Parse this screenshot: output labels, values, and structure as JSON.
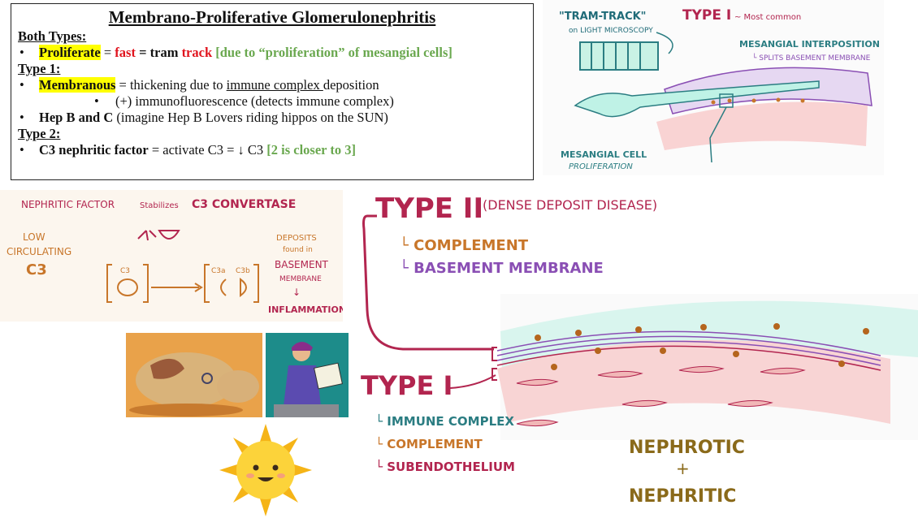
{
  "notes": {
    "title": "Membrano-Proliferative Glomerulonephritis",
    "both_types_heading": "Both Types:",
    "both_proliferate": "Proliferate",
    "both_eq1": " = ",
    "both_fast": "fast",
    "both_eq2": " = tram ",
    "both_track": "track",
    "both_reason": " [due to “proliferation” of mesangial cells]",
    "type1_heading": "Type 1:",
    "type1_membranous": "Membranous",
    "type1_thick": " = thickening due to ",
    "type1_immune": "immune complex ",
    "type1_deposition": "deposition",
    "type1_if": "(+) immunofluorescence (detects immune complex)",
    "type1_hep": "Hep B and C",
    "type1_hep_note": " (imagine Hep B Lovers riding hippos on the SUN)",
    "type2_heading": "Type 2:",
    "type2_c3nf": "C3 nephritic factor",
    "type2_activate": " = activate C3 = ↓ C3 ",
    "type2_reason": "[2 is closer to 3]"
  },
  "tram_panel": {
    "tram_track": "\"TRAM-TRACK\"",
    "light_micro": "on LIGHT MICROSCOPY",
    "type1": "TYPE I",
    "most_common": "~ Most common",
    "mesangial_interp": "MESANGIAL INTERPOSITION",
    "splits_bm": "└ SPLITS BASEMENT MEMBRANE",
    "mesangial_cell": "MESANGIAL CELL",
    "proliferation": "PROLIFERATION"
  },
  "c3_panel": {
    "nephritic_factor": "NEPHRITIC FACTOR",
    "stabilizes": "Stabilizes",
    "c3_convertase": "C3 CONVERTASE",
    "low": "LOW",
    "circulating": "CIRCULATING",
    "c3_big": "C3",
    "c3_small": "C3",
    "c3a": "C3a",
    "c3b": "C3b",
    "deposits": "DEPOSITS",
    "found_in": "found in",
    "basement": "BASEMENT",
    "membrane": "MEMBRANE",
    "arrow": "↓",
    "inflammation": "INFLAMMATION"
  },
  "types_panel": {
    "type2": "TYPE II",
    "dense_deposit": "(DENSE DEPOSIT DISEASE)",
    "t2_complement": "└ COMPLEMENT",
    "t2_bm": "└ BASEMENT MEMBRANE",
    "type1": "TYPE I",
    "t1_immune": "└ IMMUNE COMPLEX",
    "t1_complement": "└ COMPLEMENT",
    "t1_subendo": "└ SUBENDOTHELIUM",
    "nephrotic": "NEPHROTIC",
    "plus": "+",
    "nephritic": "NEPHRITIC"
  },
  "colors": {
    "crimson": "#b2254f",
    "orange": "#c8762a",
    "purple": "#8a4fb4",
    "teal": "#2b7d82",
    "gold": "#8a6a1a"
  }
}
